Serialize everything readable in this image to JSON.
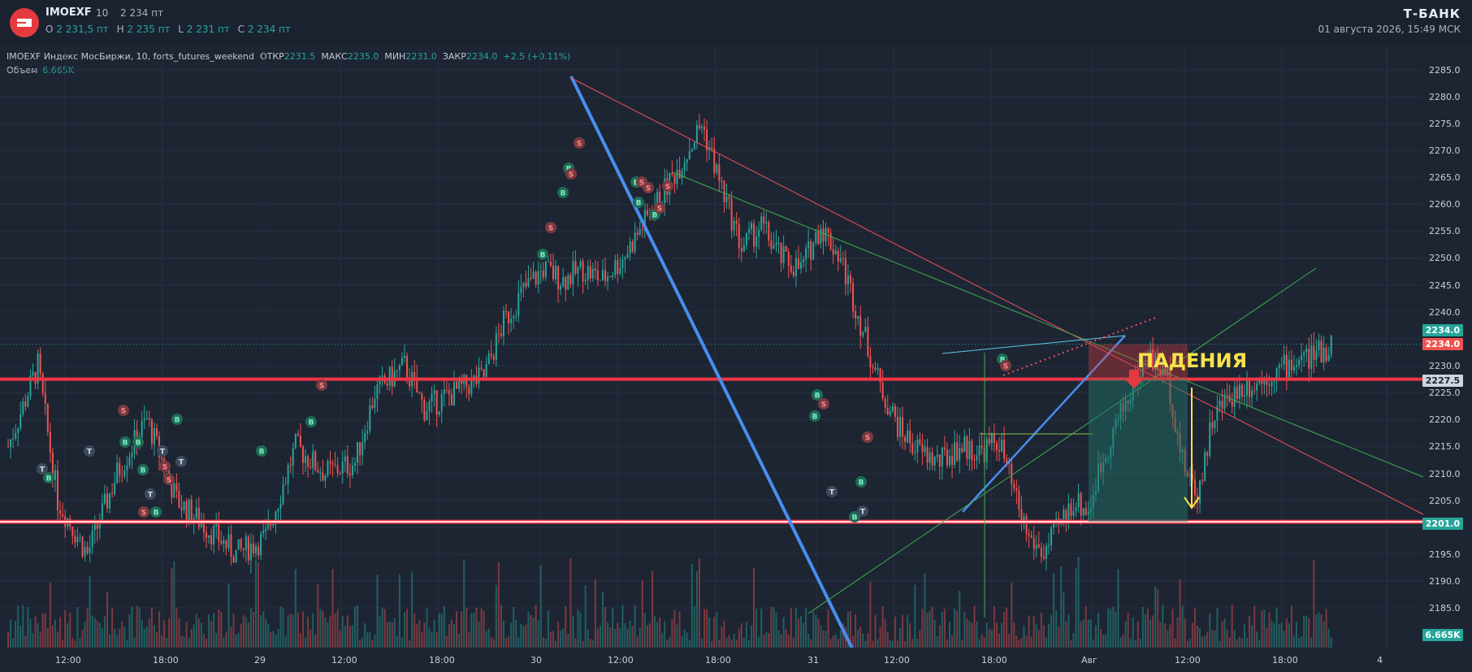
{
  "header": {
    "symbol": "IMOEXF",
    "interval": "10",
    "price": "2 234 пт",
    "ohlc": [
      {
        "key": "O",
        "value": "2 231,5 пт"
      },
      {
        "key": "H",
        "value": "2 235 пт"
      },
      {
        "key": "L",
        "value": "2 231 пт"
      },
      {
        "key": "C",
        "value": "2 234 пт"
      }
    ],
    "brand": "Т-БАНК",
    "datetime": "01 августа 2026, 15:49 МСК",
    "logo": "tbank-logo-icon"
  },
  "info": {
    "title": "IMOEXF Индекс МосБиржи, 10, forts_futures_weekend",
    "otkr_label": "ОТКР",
    "otkr": "2231.5",
    "maks_label": "МАКС",
    "maks": "2235.0",
    "min_label": "МИН",
    "min": "2231.0",
    "zakr_label": "ЗАКР",
    "zakr": "2234.0",
    "change": "+2.5 (+0.11%)",
    "volume_label": "Объем",
    "volume": "6.665K"
  },
  "yaxis": {
    "ticks": [
      "2285.0",
      "2280.0",
      "2275.0",
      "2270.0",
      "2265.0",
      "2260.0",
      "2255.0",
      "2250.0",
      "2245.0",
      "2240.0",
      "2230.0",
      "2225.0",
      "2220.0",
      "2215.0",
      "2210.0",
      "2205.0",
      "2195.0",
      "2190.0",
      "2185.0"
    ],
    "tag_2234_green": "2234.0",
    "tag_2234_red": "2234.0",
    "tag_2227": "2227.5",
    "tag_2201": "2201.0",
    "tag_volume": "6.665K"
  },
  "xaxis": {
    "labels": [
      {
        "t": "12:00"
      },
      {
        "t": "18:00"
      },
      {
        "t": "29"
      },
      {
        "t": "12:00"
      },
      {
        "t": "18:00"
      },
      {
        "t": "30"
      },
      {
        "t": "12:00"
      },
      {
        "t": "18:00"
      },
      {
        "t": "31"
      },
      {
        "t": "12:00"
      },
      {
        "t": "18:00"
      },
      {
        "t": "Авг"
      },
      {
        "t": "12:00"
      },
      {
        "t": "18:00"
      },
      {
        "t": "4"
      }
    ]
  },
  "annotation": {
    "text": "ПАДЕНИЯ"
  },
  "colors": {
    "up": "#26a69a",
    "down": "#ef5350",
    "level_red": "#f23645",
    "trend_blue": "#4a8df0",
    "accent_yellow": "#f7e24a"
  },
  "chart_data": {
    "type": "candlestick",
    "symbol": "IMOEXF",
    "interval": "10",
    "y_range": [
      2180,
      2288
    ],
    "horizontal_levels": [
      2227.5,
      2201.0
    ],
    "last_price": 2234.0,
    "volume_last": "6.665K",
    "price_path": [
      [
        0,
        2215
      ],
      [
        30,
        2230
      ],
      [
        50,
        2205
      ],
      [
        80,
        2195
      ],
      [
        110,
        2210
      ],
      [
        140,
        2220
      ],
      [
        170,
        2205
      ],
      [
        200,
        2200
      ],
      [
        230,
        2195
      ],
      [
        260,
        2198
      ],
      [
        290,
        2215
      ],
      [
        320,
        2210
      ],
      [
        350,
        2212
      ],
      [
        370,
        2225
      ],
      [
        400,
        2230
      ],
      [
        420,
        2222
      ],
      [
        450,
        2225
      ],
      [
        480,
        2228
      ],
      [
        500,
        2238
      ],
      [
        520,
        2244
      ],
      [
        540,
        2248
      ],
      [
        560,
        2246
      ],
      [
        580,
        2248
      ],
      [
        600,
        2246
      ],
      [
        620,
        2250
      ],
      [
        640,
        2256
      ],
      [
        660,
        2262
      ],
      [
        680,
        2268
      ],
      [
        700,
        2275
      ],
      [
        720,
        2263
      ],
      [
        740,
        2252
      ],
      [
        760,
        2256
      ],
      [
        780,
        2250
      ],
      [
        800,
        2248
      ],
      [
        820,
        2256
      ],
      [
        840,
        2250
      ],
      [
        860,
        2238
      ],
      [
        880,
        2226
      ],
      [
        900,
        2218
      ],
      [
        920,
        2214
      ],
      [
        940,
        2212
      ],
      [
        960,
        2215
      ],
      [
        980,
        2214
      ],
      [
        1000,
        2216
      ],
      [
        1015,
        2206
      ],
      [
        1030,
        2198
      ],
      [
        1045,
        2195
      ],
      [
        1060,
        2200
      ],
      [
        1075,
        2205
      ],
      [
        1090,
        2203
      ],
      [
        1100,
        2210
      ],
      [
        1115,
        2218
      ],
      [
        1130,
        2224
      ],
      [
        1150,
        2232
      ],
      [
        1170,
        2228
      ],
      [
        1185,
        2212
      ],
      [
        1200,
        2206
      ],
      [
        1215,
        2220
      ],
      [
        1230,
        2224
      ],
      [
        1245,
        2226
      ],
      [
        1260,
        2227
      ],
      [
        1280,
        2229
      ],
      [
        1300,
        2231
      ],
      [
        1320,
        2232
      ],
      [
        1335,
        2234
      ]
    ]
  }
}
